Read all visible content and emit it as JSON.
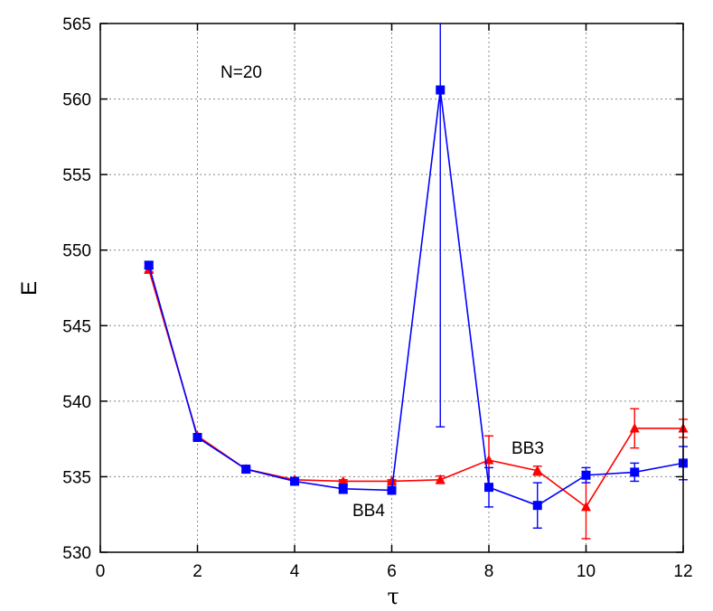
{
  "chart_data": {
    "type": "line",
    "title": "",
    "xlabel": "τ",
    "ylabel": "E",
    "xlim": [
      0,
      12
    ],
    "ylim": [
      530,
      565
    ],
    "xticks": [
      "0",
      "2",
      "4",
      "6",
      "8",
      "10",
      "12"
    ],
    "yticks": [
      "530",
      "535",
      "540",
      "545",
      "550",
      "555",
      "560",
      "565"
    ],
    "grid": true,
    "annotations": {
      "n_label": "N=20",
      "bb3_label": "BB3",
      "bb4_label": "BB4"
    },
    "series": [
      {
        "name": "BB3",
        "color": "#ff0000",
        "marker": "triangle",
        "x": [
          1,
          2,
          3,
          4,
          5,
          6,
          7,
          8,
          9,
          10,
          11,
          12
        ],
        "y": [
          548.7,
          537.7,
          535.5,
          534.8,
          534.7,
          534.7,
          534.8,
          536.1,
          535.4,
          533.0,
          538.2,
          538.2
        ],
        "err": [
          0.15,
          0.1,
          0.1,
          0.1,
          0.1,
          0.1,
          0.25,
          1.6,
          0.3,
          2.1,
          1.3,
          0.6
        ]
      },
      {
        "name": "BB4",
        "color": "#0000ff",
        "marker": "square",
        "x": [
          1,
          2,
          3,
          4,
          5,
          6,
          7,
          8,
          9,
          10,
          11,
          12
        ],
        "y": [
          549.0,
          537.6,
          535.5,
          534.7,
          534.2,
          534.1,
          560.6,
          534.3,
          533.1,
          535.1,
          535.3,
          535.9
        ],
        "err": [
          0.2,
          0.1,
          0.1,
          0.15,
          0.3,
          0.15,
          22.3,
          1.3,
          1.5,
          0.5,
          0.6,
          1.1
        ]
      }
    ]
  }
}
